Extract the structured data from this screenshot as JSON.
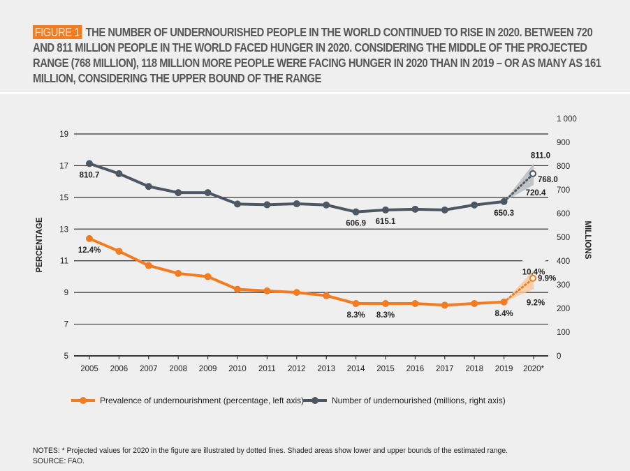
{
  "header": {
    "badge": "FIGURE 1",
    "title": "THE NUMBER OF UNDERNOURISHED PEOPLE IN THE WORLD CONTINUED TO RISE IN 2020. BETWEEN 720 AND 811 MILLION PEOPLE IN THE WORLD FACED HUNGER IN 2020. CONSIDERING THE MIDDLE OF THE PROJECTED RANGE (768 MILLION), 118 MILLION MORE PEOPLE WERE FACING HUNGER IN 2020 THAN IN 2019 – OR AS MANY AS 161 MILLION, CONSIDERING THE UPPER BOUND OF THE RANGE"
  },
  "colors": {
    "badge": "#f47c20",
    "orange_series": "#f47c20",
    "gray_series": "#4b5863",
    "gray_band": "#b8bcc0",
    "orange_band": "#f9c9a2",
    "gridline": "#333333",
    "background": "#efefef"
  },
  "chart_data": {
    "type": "line",
    "x": [
      "2005",
      "2006",
      "2007",
      "2008",
      "2009",
      "2010",
      "2011",
      "2012",
      "2013",
      "2014",
      "2015",
      "2016",
      "2017",
      "2018",
      "2019",
      "2020*"
    ],
    "left_axis": {
      "label": "PERCENTAGE",
      "ylim": [
        5,
        19
      ],
      "ticks": [
        "5",
        "7",
        "9",
        "11",
        "13",
        "15",
        "17",
        "19"
      ]
    },
    "right_axis": {
      "label": "MILLIONS",
      "ylim": [
        0,
        1000
      ],
      "ticks": [
        "0",
        "100",
        "200",
        "300",
        "400",
        "500",
        "600",
        "700",
        "800",
        "900",
        "1 000"
      ]
    },
    "grid": true,
    "legend_position": "bottom",
    "series": [
      {
        "name": "Prevalence of undernourishment (percentage, left axis)",
        "axis": "left",
        "values": [
          12.4,
          11.6,
          10.7,
          10.2,
          10.0,
          9.2,
          9.1,
          9.0,
          8.8,
          8.3,
          8.3,
          8.3,
          8.2,
          8.3,
          8.4
        ],
        "projection_2020": {
          "mid": 9.9,
          "lower": 9.2,
          "upper": 10.4
        },
        "labels": [
          {
            "index": 0,
            "text": "12.4%"
          },
          {
            "index": 9,
            "text": "8.3%"
          },
          {
            "index": 10,
            "text": "8.3%"
          },
          {
            "index": 14,
            "text": "8.4%"
          },
          {
            "index": 15,
            "text": "9.9%",
            "which": "mid"
          },
          {
            "index": 15,
            "text": "9.2%",
            "which": "lower"
          },
          {
            "index": 15,
            "text": "10.4%",
            "which": "upper"
          }
        ]
      },
      {
        "name": "Number of undernourished (millions, right axis)",
        "axis": "right",
        "values": [
          810.7,
          768,
          714,
          688,
          688,
          640,
          637,
          641,
          636,
          606.9,
          615.1,
          618,
          615,
          636,
          650.3
        ],
        "projection_2020": {
          "mid": 768.0,
          "lower": 720.4,
          "upper": 811.0
        },
        "labels": [
          {
            "index": 0,
            "text": "810.7"
          },
          {
            "index": 9,
            "text": "606.9"
          },
          {
            "index": 10,
            "text": "615.1"
          },
          {
            "index": 14,
            "text": "650.3"
          },
          {
            "index": 15,
            "text": "768.0",
            "which": "mid"
          },
          {
            "index": 15,
            "text": "720.4",
            "which": "lower"
          },
          {
            "index": 15,
            "text": "811.0",
            "which": "upper"
          }
        ]
      }
    ]
  },
  "notes": {
    "line1": "NOTES: * Projected values for 2020 in the figure are illustrated by dotted lines. Shaded areas show lower and upper bounds of the estimated range.",
    "line2": "SOURCE: FAO."
  }
}
